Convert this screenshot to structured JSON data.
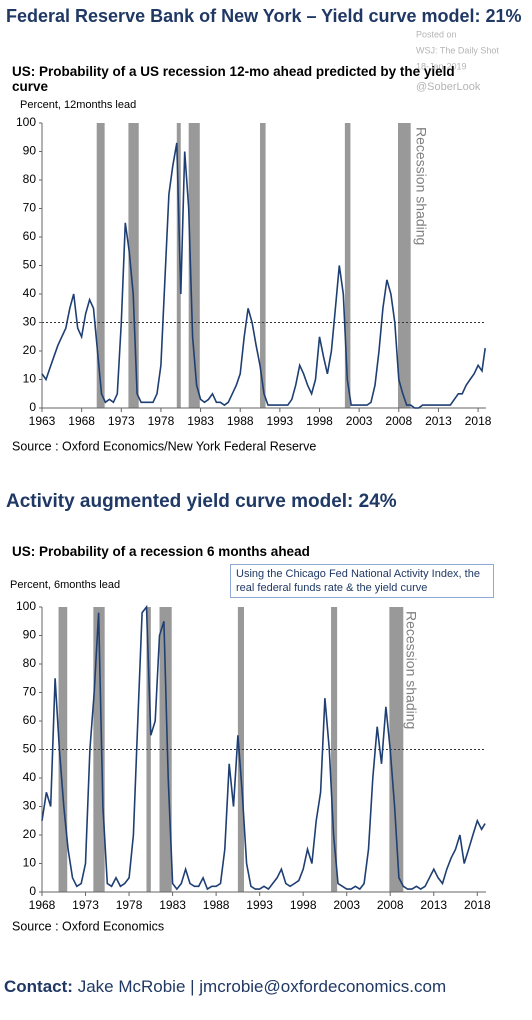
{
  "headline": "Federal Reserve Bank of New York – Yield curve model: 21%",
  "watermark": [
    "Posted on",
    "WSJ: The Daily Shot",
    "18-Jan-2019",
    "@SoberLook"
  ],
  "section_title": "Activity augmented yield curve model: 24%",
  "contact": {
    "label": "Contact:",
    "text": "Jake McRobie | jmcrobie@oxfordeconomics.com"
  },
  "chart_data": [
    {
      "type": "line",
      "title": "US: Probability of a US recession 12-mo ahead predicted by the yield curve",
      "y_label": "Percent,  12months lead",
      "source": "Source : Oxford Economics/New York Federal Reserve",
      "recession_label": "Recession shading",
      "color": "#1f3f73",
      "threshold": 30,
      "recessions": [
        [
          1969.9,
          1970.9
        ],
        [
          1973.9,
          1975.2
        ],
        [
          1980.0,
          1980.5
        ],
        [
          1981.5,
          1982.9
        ],
        [
          1990.5,
          1991.2
        ],
        [
          2001.2,
          2001.9
        ],
        [
          2007.9,
          2009.5
        ]
      ],
      "xlim": [
        1963,
        2019
      ],
      "xticks": [
        1963,
        1968,
        1973,
        1978,
        1983,
        1988,
        1993,
        1998,
        2003,
        2008,
        2013,
        2018
      ],
      "ylim": [
        0,
        100
      ],
      "yticks": [
        0,
        10,
        20,
        30,
        40,
        50,
        60,
        70,
        80,
        90,
        100
      ],
      "x": [
        1963,
        1963.5,
        1964,
        1964.5,
        1965,
        1965.5,
        1966,
        1966.5,
        1967,
        1967.5,
        1968,
        1968.5,
        1969,
        1969.5,
        1970,
        1970.5,
        1971,
        1971.5,
        1972,
        1972.5,
        1973,
        1973.5,
        1974,
        1974.5,
        1975,
        1975.5,
        1976,
        1976.5,
        1977,
        1977.5,
        1978,
        1978.5,
        1979,
        1979.5,
        1980,
        1980.5,
        1981,
        1981.5,
        1982,
        1982.5,
        1983,
        1983.5,
        1984,
        1984.5,
        1985,
        1985.5,
        1986,
        1986.5,
        1987,
        1987.5,
        1988,
        1988.5,
        1989,
        1989.5,
        1990,
        1990.5,
        1991,
        1991.5,
        1992,
        1992.5,
        1993,
        1993.5,
        1994,
        1994.5,
        1995,
        1995.5,
        1996,
        1996.5,
        1997,
        1997.5,
        1998,
        1998.5,
        1999,
        1999.5,
        2000,
        2000.5,
        2001,
        2001.5,
        2002,
        2002.5,
        2003,
        2003.5,
        2004,
        2004.5,
        2005,
        2005.5,
        2006,
        2006.5,
        2007,
        2007.5,
        2008,
        2008.5,
        2009,
        2009.5,
        2010,
        2010.5,
        2011,
        2011.5,
        2012,
        2012.5,
        2013,
        2013.5,
        2014,
        2014.5,
        2015,
        2015.5,
        2016,
        2016.5,
        2017,
        2017.5,
        2018,
        2018.5,
        2018.9
      ],
      "values": [
        12,
        10,
        14,
        18,
        22,
        25,
        28,
        35,
        40,
        28,
        25,
        33,
        38,
        35,
        20,
        5,
        2,
        3,
        2,
        5,
        30,
        65,
        55,
        40,
        5,
        2,
        2,
        2,
        2,
        5,
        15,
        45,
        75,
        85,
        93,
        40,
        90,
        70,
        25,
        8,
        3,
        2,
        3,
        5,
        2,
        2,
        1,
        2,
        5,
        8,
        12,
        25,
        35,
        30,
        22,
        15,
        5,
        1,
        1,
        1,
        1,
        1,
        1,
        3,
        8,
        15,
        12,
        8,
        5,
        10,
        25,
        18,
        12,
        20,
        35,
        50,
        40,
        10,
        1,
        1,
        1,
        1,
        1,
        2,
        8,
        20,
        35,
        45,
        40,
        30,
        10,
        5,
        1,
        1,
        0,
        0,
        1,
        1,
        1,
        1,
        1,
        1,
        1,
        1,
        3,
        5,
        5,
        8,
        10,
        12,
        15,
        13,
        21
      ]
    },
    {
      "type": "line",
      "title": "US: Probability of a recession 6 months ahead",
      "y_label": "Percent, 6months  lead",
      "source": "Source : Oxford Economics",
      "recession_label": "Recession shading",
      "annotation": "Using the Chicago Fed National Activity Index, the real federal funds rate & the yield curve",
      "color": "#1f3f73",
      "threshold": 50,
      "recessions": [
        [
          1969.9,
          1970.9
        ],
        [
          1973.9,
          1975.2
        ],
        [
          1980.0,
          1980.5
        ],
        [
          1981.5,
          1982.9
        ],
        [
          1990.5,
          1991.2
        ],
        [
          2001.2,
          2001.9
        ],
        [
          2007.9,
          2009.5
        ]
      ],
      "xlim": [
        1968,
        2019
      ],
      "xticks": [
        1968,
        1973,
        1978,
        1983,
        1988,
        1993,
        1998,
        2003,
        2008,
        2013,
        2018
      ],
      "ylim": [
        0,
        100
      ],
      "yticks": [
        0,
        10,
        20,
        30,
        40,
        50,
        60,
        70,
        80,
        90,
        100
      ],
      "x": [
        1968,
        1968.5,
        1969,
        1969.5,
        1970,
        1970.5,
        1971,
        1971.5,
        1972,
        1972.5,
        1973,
        1973.5,
        1974,
        1974.5,
        1975,
        1975.5,
        1976,
        1976.5,
        1977,
        1977.5,
        1978,
        1978.5,
        1979,
        1979.5,
        1980,
        1980.5,
        1981,
        1981.5,
        1982,
        1982.5,
        1983,
        1983.5,
        1984,
        1984.5,
        1985,
        1985.5,
        1986,
        1986.5,
        1987,
        1987.5,
        1988,
        1988.5,
        1989,
        1989.5,
        1990,
        1990.5,
        1991,
        1991.5,
        1992,
        1992.5,
        1993,
        1993.5,
        1994,
        1994.5,
        1995,
        1995.5,
        1996,
        1996.5,
        1997,
        1997.5,
        1998,
        1998.5,
        1999,
        1999.5,
        2000,
        2000.5,
        2001,
        2001.5,
        2002,
        2002.5,
        2003,
        2003.5,
        2004,
        2004.5,
        2005,
        2005.5,
        2006,
        2006.5,
        2007,
        2007.5,
        2008,
        2008.5,
        2009,
        2009.5,
        2010,
        2010.5,
        2011,
        2011.5,
        2012,
        2012.5,
        2013,
        2013.5,
        2014,
        2014.5,
        2015,
        2015.5,
        2016,
        2016.5,
        2017,
        2017.5,
        2018,
        2018.5,
        2018.9
      ],
      "values": [
        25,
        35,
        30,
        75,
        50,
        30,
        15,
        5,
        2,
        3,
        10,
        50,
        70,
        98,
        30,
        3,
        2,
        5,
        2,
        3,
        5,
        20,
        60,
        98,
        100,
        55,
        60,
        90,
        95,
        40,
        3,
        1,
        3,
        8,
        3,
        2,
        2,
        5,
        1,
        2,
        2,
        3,
        15,
        45,
        30,
        55,
        35,
        10,
        2,
        1,
        1,
        2,
        1,
        3,
        5,
        8,
        3,
        2,
        3,
        4,
        8,
        15,
        10,
        25,
        35,
        68,
        50,
        20,
        3,
        2,
        1,
        1,
        2,
        1,
        3,
        15,
        40,
        58,
        45,
        65,
        50,
        30,
        5,
        2,
        1,
        1,
        2,
        1,
        2,
        5,
        8,
        5,
        3,
        8,
        12,
        15,
        20,
        10,
        15,
        20,
        25,
        22,
        24
      ]
    }
  ]
}
